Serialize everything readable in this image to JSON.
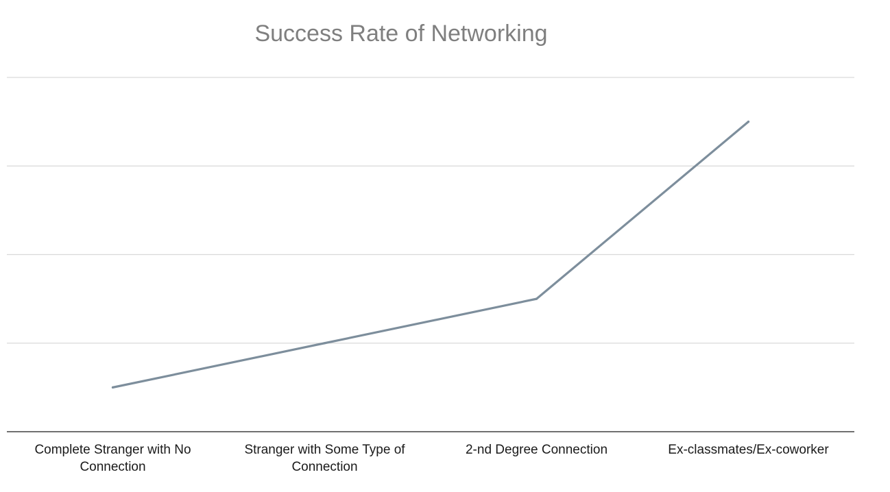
{
  "chart_data": {
    "type": "line",
    "title": "Success Rate of Networking",
    "xlabel": "",
    "ylabel": "",
    "categories": [
      [
        "Complete Stranger with No",
        "Connection"
      ],
      [
        "Stranger with Some Type of",
        "Connection"
      ],
      [
        "2-nd Degree Connection"
      ],
      [
        "Ex-classmates/Ex-coworker"
      ]
    ],
    "series": [
      {
        "values": [
          0.5,
          1.0,
          1.5,
          3.5
        ],
        "color": "#7d8e9c"
      }
    ],
    "ylim": [
      0,
      4
    ],
    "yticks": [
      0,
      1,
      2,
      3,
      4
    ],
    "grid": true,
    "show_y_tick_labels": false,
    "legend": "none",
    "gridline_color": "#d9d9d9",
    "axis_color": "#404040"
  }
}
